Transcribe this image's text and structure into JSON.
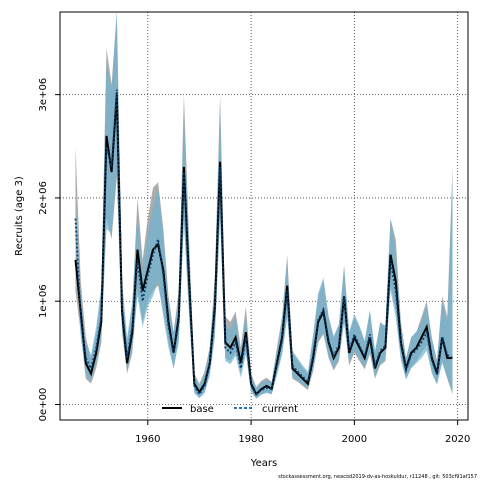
{
  "chart_data": {
    "type": "area",
    "title": "",
    "xlabel": "Years",
    "ylabel": "Recruits (age 3)",
    "xlim": [
      1943,
      2022
    ],
    "ylim": [
      -150000,
      3800000
    ],
    "x_ticks": [
      1960,
      1980,
      2000,
      2020
    ],
    "x_tick_labels": [
      "1960",
      "1980",
      "2000",
      "2020"
    ],
    "y_ticks": [
      0,
      1000000,
      2000000,
      3000000
    ],
    "y_tick_labels": [
      "0e+00",
      "1e+06",
      "2e+06",
      "3e+06"
    ],
    "grid": true,
    "legend_position": "bottom-center",
    "footer": "stockassessment.org, neacod2019-dv-as-hoskuldur, r11248 , git: 503cf91af157",
    "years": [
      1946,
      1947,
      1948,
      1949,
      1950,
      1951,
      1952,
      1953,
      1954,
      1955,
      1956,
      1957,
      1958,
      1959,
      1960,
      1961,
      1962,
      1963,
      1964,
      1965,
      1966,
      1967,
      1968,
      1969,
      1970,
      1971,
      1972,
      1973,
      1974,
      1975,
      1976,
      1977,
      1978,
      1979,
      1980,
      1981,
      1982,
      1983,
      1984,
      1985,
      1986,
      1987,
      1988,
      1989,
      1990,
      1991,
      1992,
      1993,
      1994,
      1995,
      1996,
      1997,
      1998,
      1999,
      2000,
      2001,
      2002,
      2003,
      2004,
      2005,
      2006,
      2007,
      2008,
      2009,
      2010,
      2011,
      2012,
      2013,
      2014,
      2015,
      2016,
      2017,
      2018,
      2019
    ],
    "series": [
      {
        "name": "base",
        "color": "#000000",
        "values": [
          1400000,
          900000,
          400000,
          300000,
          500000,
          800000,
          2600000,
          2250000,
          3000000,
          900000,
          400000,
          700000,
          1500000,
          1100000,
          1300000,
          1500000,
          1550000,
          1300000,
          800000,
          500000,
          850000,
          2300000,
          1200000,
          200000,
          120000,
          200000,
          400000,
          950000,
          2350000,
          600000,
          550000,
          650000,
          400000,
          700000,
          200000,
          100000,
          150000,
          180000,
          150000,
          400000,
          650000,
          1150000,
          350000,
          300000,
          250000,
          200000,
          450000,
          800000,
          900000,
          600000,
          450000,
          550000,
          1050000,
          500000,
          650000,
          550000,
          450000,
          650000,
          350000,
          500000,
          550000,
          1450000,
          1200000,
          600000,
          350000,
          500000,
          550000,
          650000,
          750000,
          450000,
          300000,
          650000,
          450000,
          450000
        ],
        "ci_lower": [
          1100000,
          700000,
          250000,
          200000,
          350000,
          600000,
          1800000,
          1600000,
          2200000,
          700000,
          300000,
          500000,
          1100000,
          800000,
          1000000,
          1100000,
          1150000,
          900000,
          600000,
          350000,
          650000,
          1800000,
          900000,
          120000,
          70000,
          120000,
          300000,
          700000,
          1850000,
          450000,
          420000,
          500000,
          300000,
          520000,
          130000,
          60000,
          100000,
          120000,
          100000,
          300000,
          500000,
          850000,
          250000,
          220000,
          180000,
          140000,
          320000,
          600000,
          680000,
          450000,
          330000,
          420000,
          800000,
          380000,
          500000,
          420000,
          340000,
          490000,
          250000,
          380000,
          420000,
          1150000,
          920000,
          450000,
          250000,
          360000,
          420000,
          500000,
          570000,
          320000,
          200000,
          420000,
          250000,
          100000
        ],
        "ci_upper": [
          2500000,
          1200000,
          650000,
          450000,
          700000,
          1100000,
          3450000,
          3100000,
          3800000,
          1200000,
          600000,
          950000,
          2000000,
          1400000,
          1800000,
          2100000,
          2150000,
          1700000,
          1050000,
          700000,
          1100000,
          3000000,
          1600000,
          300000,
          200000,
          320000,
          550000,
          1250000,
          3000000,
          850000,
          800000,
          900000,
          550000,
          950000,
          300000,
          170000,
          230000,
          260000,
          220000,
          550000,
          850000,
          1450000,
          500000,
          430000,
          360000,
          300000,
          650000,
          1050000,
          1200000,
          850000,
          650000,
          770000,
          1350000,
          700000,
          850000,
          750000,
          600000,
          900000,
          500000,
          800000,
          750000,
          1800000,
          1600000,
          800000,
          450000,
          650000,
          700000,
          850000,
          1000000,
          650000,
          420000,
          1050000,
          850000,
          2300000
        ]
      },
      {
        "name": "current",
        "color": "#1f78b4",
        "values": [
          1800000,
          850000,
          450000,
          350000,
          550000,
          850000,
          2500000,
          2300000,
          3050000,
          950000,
          450000,
          750000,
          1400000,
          1000000,
          1250000,
          1450000,
          1600000,
          1250000,
          750000,
          500000,
          800000,
          2250000,
          1150000,
          180000,
          100000,
          180000,
          400000,
          900000,
          2300000,
          550000,
          500000,
          600000,
          350000,
          650000,
          180000,
          100000,
          140000,
          160000,
          150000,
          380000,
          620000,
          1100000,
          380000,
          320000,
          270000,
          220000,
          480000,
          820000,
          920000,
          620000,
          470000,
          580000,
          1050000,
          520000,
          680000,
          570000,
          470000,
          680000,
          380000,
          520000,
          570000,
          1400000,
          1100000,
          580000,
          330000,
          480000,
          530000,
          600000,
          700000,
          430000,
          290000,
          650000,
          480000,
          450000
        ],
        "ci_lower": [
          1600000,
          650000,
          300000,
          230000,
          400000,
          650000,
          1700000,
          1650000,
          2250000,
          750000,
          330000,
          550000,
          1050000,
          750000,
          950000,
          1050000,
          1200000,
          850000,
          550000,
          350000,
          600000,
          1750000,
          850000,
          110000,
          60000,
          110000,
          280000,
          650000,
          1800000,
          420000,
          390000,
          470000,
          260000,
          480000,
          120000,
          55000,
          95000,
          110000,
          100000,
          280000,
          480000,
          850000,
          270000,
          230000,
          190000,
          160000,
          340000,
          620000,
          690000,
          470000,
          350000,
          440000,
          800000,
          400000,
          520000,
          440000,
          360000,
          510000,
          270000,
          390000,
          430000,
          1100000,
          850000,
          430000,
          240000,
          350000,
          400000,
          450000,
          520000,
          300000,
          190000,
          400000,
          260000,
          120000
        ],
        "ci_upper": [
          2000000,
          1050000,
          600000,
          480000,
          750000,
          1150000,
          3300000,
          3050000,
          3800000,
          1200000,
          650000,
          1000000,
          1850000,
          1300000,
          1650000,
          1900000,
          2100000,
          1650000,
          1000000,
          700000,
          1050000,
          2800000,
          1500000,
          280000,
          180000,
          300000,
          560000,
          1200000,
          2900000,
          780000,
          720000,
          850000,
          500000,
          880000,
          270000,
          160000,
          210000,
          240000,
          210000,
          520000,
          820000,
          1400000,
          520000,
          450000,
          380000,
          320000,
          680000,
          1080000,
          1230000,
          850000,
          660000,
          780000,
          1330000,
          700000,
          880000,
          760000,
          620000,
          920000,
          520000,
          780000,
          770000,
          1800000,
          1500000,
          780000,
          450000,
          650000,
          710000,
          800000,
          960000,
          640000,
          430000,
          1000000,
          800000,
          2200000
        ]
      }
    ]
  }
}
